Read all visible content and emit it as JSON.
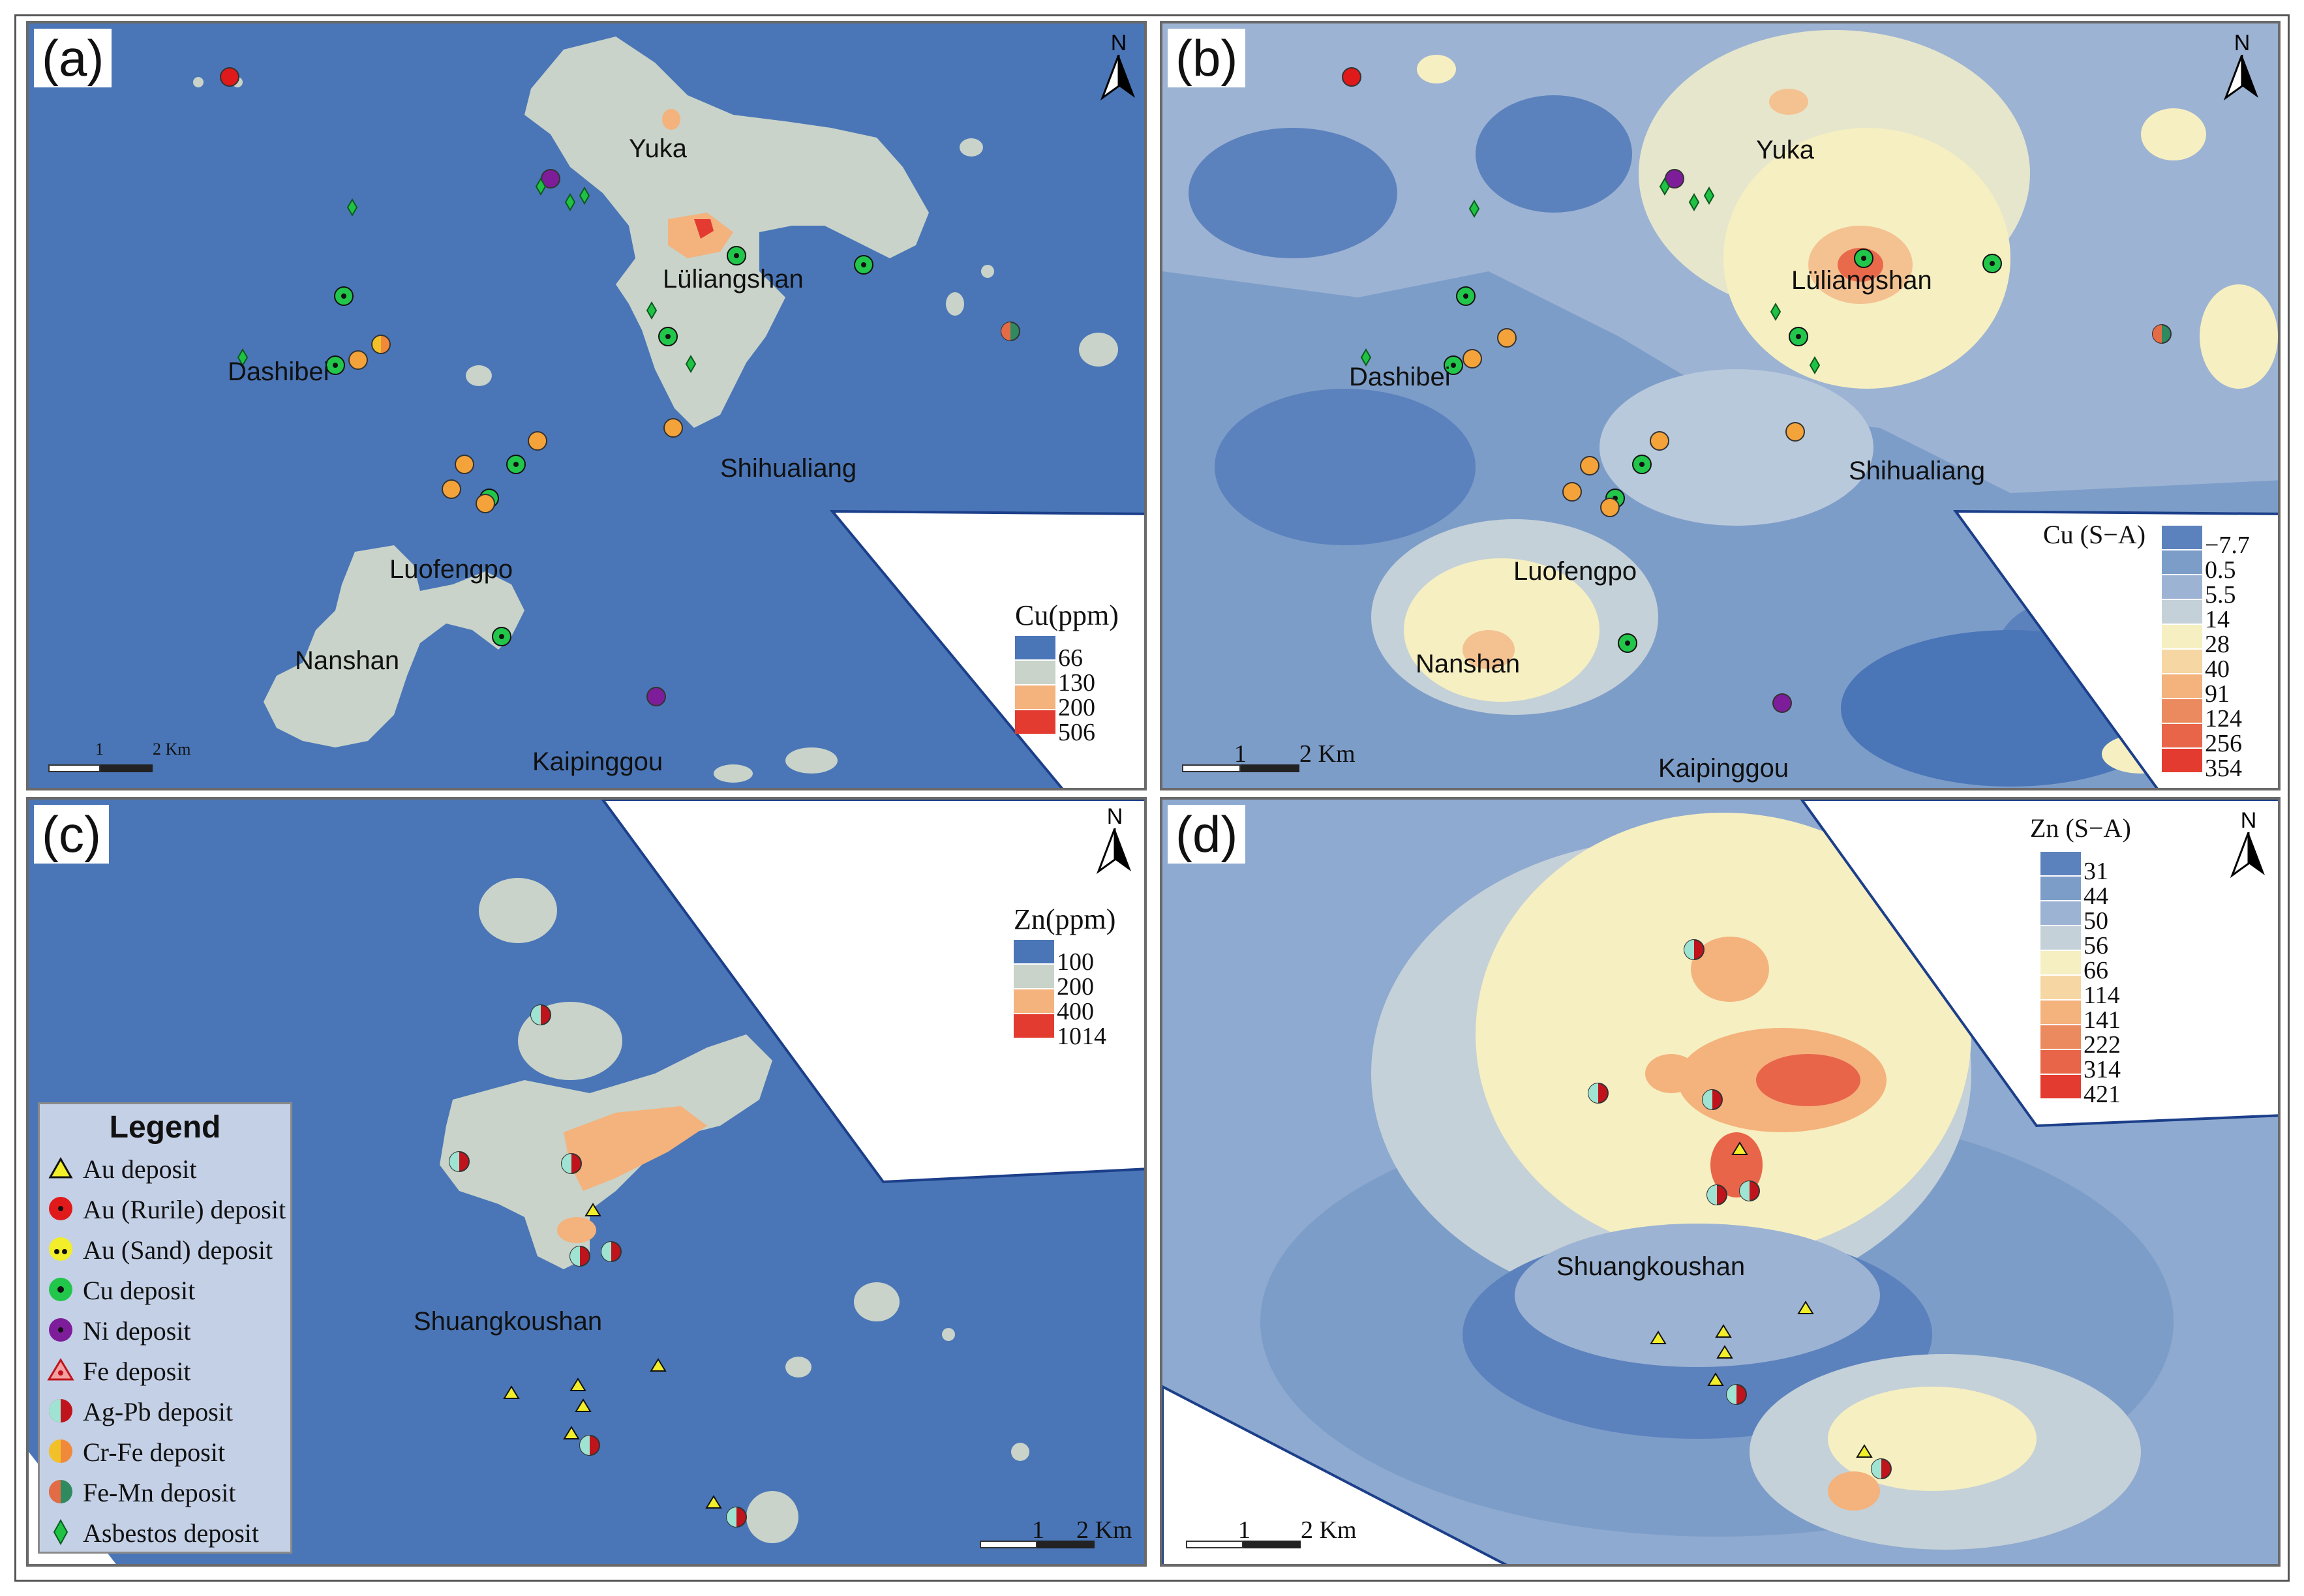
{
  "panels": {
    "a": {
      "label": "(a)",
      "legend_title": "Cu(ppm)",
      "legend": [
        "66",
        "130",
        "200",
        "506"
      ],
      "places": [
        "Yuka",
        "Lüliangshan",
        "Dashibei",
        "Shihualiang",
        "Luofengpo",
        "Nanshan",
        "Kaipinggou"
      ],
      "scale": [
        "1",
        "2 Km"
      ],
      "north": "N"
    },
    "b": {
      "label": "(b)",
      "legend_title": "Cu (S−A)",
      "legend": [
        "−7.7",
        "0.5",
        "5.5",
        "14",
        "28",
        "40",
        "91",
        "124",
        "256",
        "354"
      ],
      "places": [
        "Yuka",
        "Lüliangshan",
        "Dashibei",
        "Shihualiang",
        "Luofengpo",
        "Nanshan",
        "Kaipinggou"
      ],
      "scale": [
        "1",
        "2 Km"
      ],
      "north": "N"
    },
    "c": {
      "label": "(c)",
      "legend_title": "Zn(ppm)",
      "legend": [
        "100",
        "200",
        "400",
        "1014"
      ],
      "places": [
        "Shuangkoushan"
      ],
      "scale": [
        "1",
        "2 Km"
      ],
      "north": "N"
    },
    "d": {
      "label": "(d)",
      "legend_title": "Zn (S−A)",
      "legend": [
        "31",
        "44",
        "50",
        "56",
        "66",
        "114",
        "141",
        "222",
        "314",
        "421"
      ],
      "places": [
        "Shuangkoushan"
      ],
      "scale": [
        "1",
        "2 Km"
      ],
      "north": "N"
    }
  },
  "legend": {
    "title": "Legend",
    "items": [
      "Au deposit",
      "Au (Rurile) deposit",
      "Au (Sand) deposit",
      "Cu deposit",
      "Ni deposit",
      "Fe deposit",
      "Ag-Pb deposit",
      "Cr-Fe deposit",
      "Fe-Mn deposit",
      "Asbestos deposit"
    ]
  },
  "colors": {
    "background_low": "#4a76b7",
    "background_mid": "#c9d3c9",
    "anomaly_orange": "#f4b27d",
    "anomaly_red": "#e33b2f",
    "sa_low": "#5c82bd",
    "sa_mid": "#f6efc1",
    "cu_deposit": "#21c64a",
    "ni_deposit": "#7d1d99",
    "au_rurile": "#e01a1a",
    "au_deposit": "#f2ee2a",
    "asbestos": "#1fc243"
  }
}
